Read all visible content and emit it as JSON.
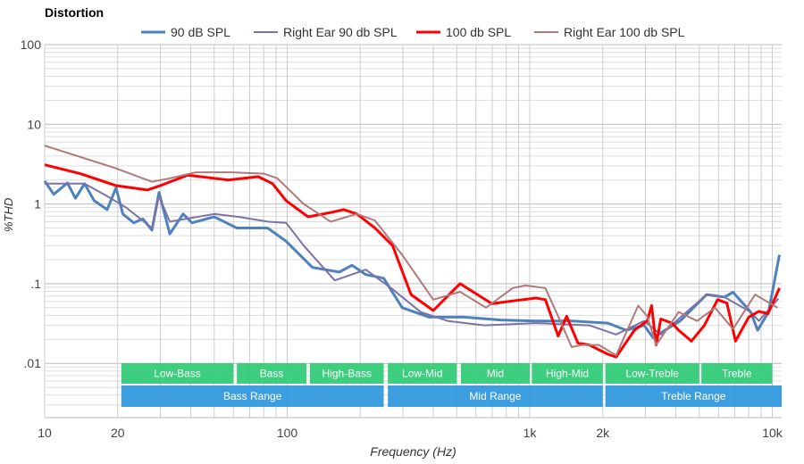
{
  "chart_data": {
    "type": "line",
    "title": "Distortion",
    "xlabel": "Frequency (Hz)",
    "ylabel": "%THD",
    "x_scale": "log",
    "y_scale": "log",
    "xlim": [
      10,
      11000
    ],
    "ylim": [
      0.001,
      100
    ],
    "x_ticks": [
      {
        "v": 10,
        "label": "10"
      },
      {
        "v": 20,
        "label": "20"
      },
      {
        "v": 100,
        "label": "100"
      },
      {
        "v": 1000,
        "label": "1k"
      },
      {
        "v": 2000,
        "label": "2k"
      },
      {
        "v": 10000,
        "label": "10k"
      }
    ],
    "y_ticks": [
      {
        "v": 100,
        "label": "100"
      },
      {
        "v": 10,
        "label": "10"
      },
      {
        "v": 1,
        "label": "1"
      },
      {
        "v": 0.1,
        "label": ".1"
      },
      {
        "v": 0.01,
        "label": ".01"
      }
    ],
    "grid": true,
    "legend": "top",
    "series": [
      {
        "name": "90 dB SPL",
        "color": "#4f81bd",
        "width": 3,
        "points": [
          [
            10,
            1.94
          ],
          [
            10.9,
            1.32
          ],
          [
            12.4,
            1.84
          ],
          [
            13.4,
            1.18
          ],
          [
            14.6,
            1.8
          ],
          [
            16,
            1.1
          ],
          [
            18.1,
            0.85
          ],
          [
            19.7,
            1.6
          ],
          [
            21,
            0.75
          ],
          [
            23.3,
            0.58
          ],
          [
            25.4,
            0.65
          ],
          [
            27.7,
            0.47
          ],
          [
            29.6,
            1.4
          ],
          [
            32.8,
            0.42
          ],
          [
            37.2,
            0.75
          ],
          [
            40.5,
            0.58
          ],
          [
            50,
            0.69
          ],
          [
            62,
            0.5
          ],
          [
            83,
            0.5
          ],
          [
            99,
            0.34
          ],
          [
            127,
            0.16
          ],
          [
            164,
            0.14
          ],
          [
            185,
            0.17
          ],
          [
            211,
            0.13
          ],
          [
            250,
            0.117
          ],
          [
            298,
            0.05
          ],
          [
            385,
            0.038
          ],
          [
            535,
            0.038
          ],
          [
            758,
            0.035
          ],
          [
            1060,
            0.034
          ],
          [
            1490,
            0.034
          ],
          [
            2100,
            0.032
          ],
          [
            2500,
            0.026
          ],
          [
            2960,
            0.03
          ],
          [
            3220,
            0.021
          ],
          [
            4170,
            0.034
          ],
          [
            5360,
            0.073
          ],
          [
            6340,
            0.068
          ],
          [
            6890,
            0.078
          ],
          [
            8150,
            0.044
          ],
          [
            8700,
            0.026
          ],
          [
            9650,
            0.044
          ],
          [
            10700,
            0.23
          ]
        ]
      },
      {
        "name": "Right Ear 90 db SPL",
        "color": "#7b72a8",
        "width": 2,
        "points": [
          [
            10,
            1.8
          ],
          [
            14.6,
            1.8
          ],
          [
            18.1,
            1.25
          ],
          [
            21.7,
            0.9
          ],
          [
            27.7,
            0.5
          ],
          [
            29.6,
            1.25
          ],
          [
            32.8,
            0.6
          ],
          [
            50,
            0.75
          ],
          [
            63,
            0.69
          ],
          [
            83,
            0.6
          ],
          [
            99,
            0.58
          ],
          [
            117,
            0.3
          ],
          [
            157,
            0.11
          ],
          [
            211,
            0.15
          ],
          [
            272,
            0.085
          ],
          [
            355,
            0.044
          ],
          [
            460,
            0.034
          ],
          [
            650,
            0.03
          ],
          [
            1060,
            0.032
          ],
          [
            1760,
            0.03
          ],
          [
            2270,
            0.023
          ],
          [
            2960,
            0.034
          ],
          [
            3470,
            0.023
          ],
          [
            5360,
            0.073
          ],
          [
            6340,
            0.068
          ],
          [
            8150,
            0.044
          ],
          [
            8800,
            0.034
          ],
          [
            10600,
            0.065
          ]
        ]
      },
      {
        "name": "100 db SPL",
        "color": "#ff0000",
        "width": 3,
        "points": [
          [
            10,
            3.1
          ],
          [
            14,
            2.4
          ],
          [
            19.7,
            1.7
          ],
          [
            26.5,
            1.5
          ],
          [
            30,
            1.7
          ],
          [
            38.8,
            2.3
          ],
          [
            57,
            2.0
          ],
          [
            76,
            2.2
          ],
          [
            87,
            1.8
          ],
          [
            99,
            1.1
          ],
          [
            122,
            0.69
          ],
          [
            151,
            0.78
          ],
          [
            171,
            0.85
          ],
          [
            194,
            0.75
          ],
          [
            230,
            0.5
          ],
          [
            272,
            0.3
          ],
          [
            324,
            0.073
          ],
          [
            400,
            0.046
          ],
          [
            516,
            0.1
          ],
          [
            698,
            0.056
          ],
          [
            826,
            0.06
          ],
          [
            1060,
            0.066
          ],
          [
            1160,
            0.063
          ],
          [
            1310,
            0.022
          ],
          [
            1420,
            0.039
          ],
          [
            1580,
            0.018
          ],
          [
            1760,
            0.017
          ],
          [
            2100,
            0.013
          ],
          [
            2270,
            0.012
          ],
          [
            2700,
            0.026
          ],
          [
            3050,
            0.034
          ],
          [
            3180,
            0.053
          ],
          [
            3320,
            0.017
          ],
          [
            3470,
            0.036
          ],
          [
            3860,
            0.032
          ],
          [
            4110,
            0.026
          ],
          [
            4640,
            0.019
          ],
          [
            5250,
            0.03
          ],
          [
            5950,
            0.063
          ],
          [
            6500,
            0.057
          ],
          [
            7050,
            0.019
          ],
          [
            8000,
            0.038
          ],
          [
            8800,
            0.045
          ],
          [
            9600,
            0.042
          ],
          [
            10700,
            0.088
          ]
        ]
      },
      {
        "name": "Right Ear 100 db SPL",
        "color": "#b07a7a",
        "width": 2,
        "points": [
          [
            10,
            5.4
          ],
          [
            19.7,
            2.8
          ],
          [
            27.7,
            1.9
          ],
          [
            32.8,
            2.1
          ],
          [
            42,
            2.5
          ],
          [
            59,
            2.5
          ],
          [
            80,
            2.4
          ],
          [
            91,
            2.1
          ],
          [
            117,
            1.0
          ],
          [
            151,
            0.6
          ],
          [
            194,
            0.75
          ],
          [
            230,
            0.62
          ],
          [
            298,
            0.23
          ],
          [
            400,
            0.063
          ],
          [
            516,
            0.079
          ],
          [
            660,
            0.05
          ],
          [
            850,
            0.088
          ],
          [
            960,
            0.095
          ],
          [
            1160,
            0.088
          ],
          [
            1310,
            0.039
          ],
          [
            1490,
            0.016
          ],
          [
            1640,
            0.017
          ],
          [
            1930,
            0.017
          ],
          [
            2270,
            0.0126
          ],
          [
            2800,
            0.053
          ],
          [
            3050,
            0.039
          ],
          [
            3320,
            0.017
          ],
          [
            4110,
            0.044
          ],
          [
            4900,
            0.034
          ],
          [
            5800,
            0.05
          ],
          [
            6890,
            0.027
          ],
          [
            8500,
            0.073
          ],
          [
            10500,
            0.05
          ]
        ]
      }
    ],
    "bands": [
      {
        "label": "Low-Bass",
        "from": 20.7,
        "to": 60,
        "color": "#33cc77"
      },
      {
        "label": "Bass",
        "from": 62,
        "to": 120,
        "color": "#33cc77"
      },
      {
        "label": "High-Bass",
        "from": 124,
        "to": 250,
        "color": "#33cc77"
      },
      {
        "label": "Low-Mid",
        "from": 260,
        "to": 500,
        "color": "#33cc77"
      },
      {
        "label": "Mid",
        "from": 520,
        "to": 1000,
        "color": "#33cc77"
      },
      {
        "label": "High-Mid",
        "from": 1020,
        "to": 2000,
        "color": "#33cc77"
      },
      {
        "label": "Low-Treble",
        "from": 2050,
        "to": 5000,
        "color": "#33cc77"
      },
      {
        "label": "Treble",
        "from": 5100,
        "to": 10000,
        "color": "#33cc77"
      }
    ],
    "ranges": [
      {
        "label": "Bass Range",
        "from": 20.7,
        "to": 250,
        "color": "#3399dd"
      },
      {
        "label": "Mid Range",
        "from": 260,
        "to": 2000,
        "color": "#3399dd"
      },
      {
        "label": "Treble Range",
        "from": 2050,
        "to": 11000,
        "color": "#3399dd"
      }
    ]
  }
}
